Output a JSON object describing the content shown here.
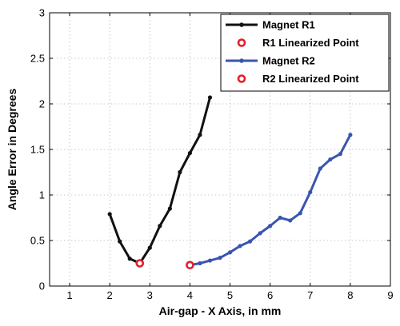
{
  "chart_data": {
    "type": "line",
    "title": "",
    "xlabel": "Air-gap - X Axis, in mm",
    "ylabel": "Angle Error in Degrees",
    "xlim": [
      0.5,
      9
    ],
    "ylim": [
      0,
      3
    ],
    "xticks": [
      1,
      2,
      3,
      4,
      5,
      6,
      7,
      8,
      9
    ],
    "yticks": [
      0,
      0.5,
      1,
      1.5,
      2,
      2.5,
      3
    ],
    "xtick_labels": [
      "1",
      "2",
      "3",
      "4",
      "5",
      "6",
      "7",
      "8",
      "9"
    ],
    "ytick_labels": [
      "0",
      "0.5",
      "1",
      "1.5",
      "2",
      "2.5",
      "3"
    ],
    "grid": true,
    "legend_position": "top-right",
    "series": [
      {
        "name": "Magnet R1",
        "kind": "line",
        "color": "#111111",
        "x": [
          2.0,
          2.25,
          2.5,
          2.75,
          3.0,
          3.25,
          3.5,
          3.75,
          4.0,
          4.25,
          4.5
        ],
        "y": [
          0.79,
          0.49,
          0.3,
          0.25,
          0.42,
          0.66,
          0.85,
          1.25,
          1.46,
          1.66,
          2.07
        ]
      },
      {
        "name": "R1 Linearized Point",
        "kind": "marker",
        "color": "#e0202a",
        "x": [
          2.75
        ],
        "y": [
          0.25
        ]
      },
      {
        "name": "Magnet R2",
        "kind": "line",
        "color": "#3a55b0",
        "x": [
          4.0,
          4.25,
          4.5,
          4.75,
          5.0,
          5.25,
          5.5,
          5.75,
          6.0,
          6.25,
          6.5,
          6.75,
          7.0,
          7.25,
          7.5,
          7.75,
          8.0
        ],
        "y": [
          0.23,
          0.25,
          0.28,
          0.31,
          0.37,
          0.44,
          0.49,
          0.58,
          0.66,
          0.75,
          0.72,
          0.8,
          1.03,
          1.29,
          1.39,
          1.45,
          1.66
        ]
      },
      {
        "name": "R2 Linearized Point",
        "kind": "marker",
        "color": "#e0202a",
        "x": [
          4.0
        ],
        "y": [
          0.23
        ]
      }
    ]
  }
}
